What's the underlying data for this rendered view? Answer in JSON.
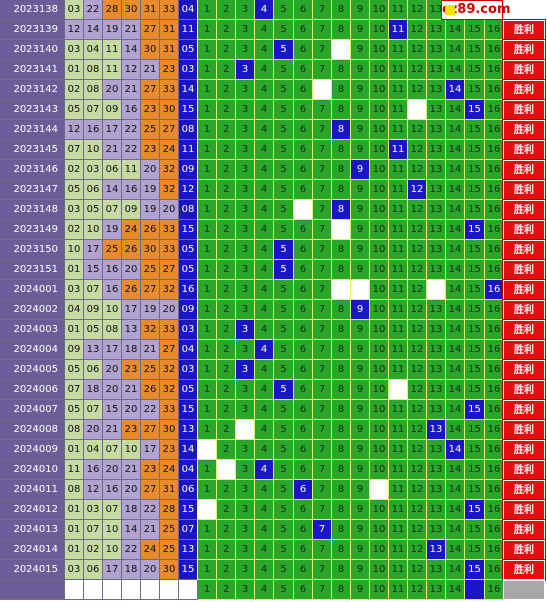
{
  "watermark": "cz89.com",
  "result_label": "胜利",
  "rows": [
    {
      "issue": "2023138",
      "nums": [
        "03",
        "22",
        "28",
        "30",
        "31",
        "33"
      ],
      "blue": "04",
      "hit": 4,
      "empties": []
    },
    {
      "issue": "2023139",
      "nums": [
        "12",
        "14",
        "19",
        "21",
        "27",
        "31"
      ],
      "blue": "11",
      "hit": 11,
      "empties": []
    },
    {
      "issue": "2023140",
      "nums": [
        "03",
        "04",
        "11",
        "14",
        "30",
        "31"
      ],
      "blue": "05",
      "hit": 5,
      "empties": [
        8
      ]
    },
    {
      "issue": "2023141",
      "nums": [
        "01",
        "08",
        "11",
        "12",
        "21",
        "23"
      ],
      "blue": "03",
      "hit": 3,
      "empties": []
    },
    {
      "issue": "2023142",
      "nums": [
        "02",
        "08",
        "20",
        "21",
        "27",
        "33"
      ],
      "blue": "14",
      "hit": 14,
      "empties": [
        7
      ]
    },
    {
      "issue": "2023143",
      "nums": [
        "05",
        "07",
        "09",
        "16",
        "23",
        "30"
      ],
      "blue": "15",
      "hit": 15,
      "empties": [
        12
      ]
    },
    {
      "issue": "2023144",
      "nums": [
        "12",
        "16",
        "17",
        "22",
        "25",
        "27"
      ],
      "blue": "08",
      "hit": 8,
      "empties": []
    },
    {
      "issue": "2023145",
      "nums": [
        "07",
        "10",
        "21",
        "22",
        "23",
        "24"
      ],
      "blue": "11",
      "hit": 11,
      "empties": []
    },
    {
      "issue": "2023146",
      "nums": [
        "02",
        "03",
        "06",
        "11",
        "20",
        "32"
      ],
      "blue": "09",
      "hit": 9,
      "empties": []
    },
    {
      "issue": "2023147",
      "nums": [
        "05",
        "06",
        "14",
        "16",
        "19",
        "32"
      ],
      "blue": "12",
      "hit": 12,
      "empties": []
    },
    {
      "issue": "2023148",
      "nums": [
        "03",
        "05",
        "07",
        "09",
        "19",
        "20"
      ],
      "blue": "08",
      "hit": 8,
      "empties": [
        6
      ]
    },
    {
      "issue": "2023149",
      "nums": [
        "02",
        "10",
        "19",
        "24",
        "26",
        "33"
      ],
      "blue": "15",
      "hit": 15,
      "empties": [
        8
      ]
    },
    {
      "issue": "2023150",
      "nums": [
        "10",
        "17",
        "25",
        "26",
        "30",
        "33"
      ],
      "blue": "05",
      "hit": 5,
      "empties": []
    },
    {
      "issue": "2023151",
      "nums": [
        "01",
        "15",
        "16",
        "20",
        "25",
        "27"
      ],
      "blue": "05",
      "hit": 5,
      "empties": []
    },
    {
      "issue": "2024001",
      "nums": [
        "03",
        "07",
        "16",
        "26",
        "27",
        "32"
      ],
      "blue": "16",
      "hit": 16,
      "empties": [
        8,
        9,
        13
      ]
    },
    {
      "issue": "2024002",
      "nums": [
        "04",
        "09",
        "10",
        "17",
        "19",
        "20"
      ],
      "blue": "09",
      "hit": 9,
      "empties": []
    },
    {
      "issue": "2024003",
      "nums": [
        "01",
        "05",
        "08",
        "13",
        "32",
        "33"
      ],
      "blue": "03",
      "hit": 3,
      "empties": []
    },
    {
      "issue": "2024004",
      "nums": [
        "09",
        "13",
        "17",
        "18",
        "21",
        "27"
      ],
      "blue": "04",
      "hit": 4,
      "empties": []
    },
    {
      "issue": "2024005",
      "nums": [
        "05",
        "06",
        "20",
        "23",
        "25",
        "32"
      ],
      "blue": "03",
      "hit": 3,
      "empties": []
    },
    {
      "issue": "2024006",
      "nums": [
        "07",
        "18",
        "20",
        "21",
        "26",
        "32"
      ],
      "blue": "05",
      "hit": 5,
      "empties": [
        11
      ]
    },
    {
      "issue": "2024007",
      "nums": [
        "05",
        "07",
        "15",
        "20",
        "22",
        "33"
      ],
      "blue": "15",
      "hit": 15,
      "empties": []
    },
    {
      "issue": "2024008",
      "nums": [
        "08",
        "20",
        "21",
        "23",
        "27",
        "30"
      ],
      "blue": "13",
      "hit": 13,
      "empties": [
        3
      ]
    },
    {
      "issue": "2024009",
      "nums": [
        "01",
        "04",
        "07",
        "10",
        "17",
        "23"
      ],
      "blue": "14",
      "hit": 14,
      "empties": [
        1
      ]
    },
    {
      "issue": "2024010",
      "nums": [
        "11",
        "16",
        "20",
        "21",
        "23",
        "24"
      ],
      "blue": "04",
      "hit": 4,
      "empties": [
        2
      ]
    },
    {
      "issue": "2024011",
      "nums": [
        "08",
        "12",
        "16",
        "20",
        "27",
        "31"
      ],
      "blue": "06",
      "hit": 6,
      "empties": [
        10
      ]
    },
    {
      "issue": "2024012",
      "nums": [
        "01",
        "03",
        "07",
        "18",
        "22",
        "28"
      ],
      "blue": "15",
      "hit": 15,
      "empties": [
        1
      ]
    },
    {
      "issue": "2024013",
      "nums": [
        "01",
        "07",
        "10",
        "14",
        "21",
        "25"
      ],
      "blue": "07",
      "hit": 7,
      "empties": []
    },
    {
      "issue": "2024014",
      "nums": [
        "01",
        "02",
        "10",
        "22",
        "24",
        "25"
      ],
      "blue": "13",
      "hit": 13,
      "empties": []
    },
    {
      "issue": "2024015",
      "nums": [
        "03",
        "06",
        "17",
        "18",
        "20",
        "30"
      ],
      "blue": "15",
      "hit": 15,
      "empties": []
    }
  ],
  "footer": {
    "nums": [
      "1",
      "2",
      "3",
      "4",
      "5",
      "6",
      "7",
      "8",
      "9",
      "10",
      "11",
      "12",
      "13",
      "14",
      "15",
      "16"
    ],
    "hit": 15
  }
}
